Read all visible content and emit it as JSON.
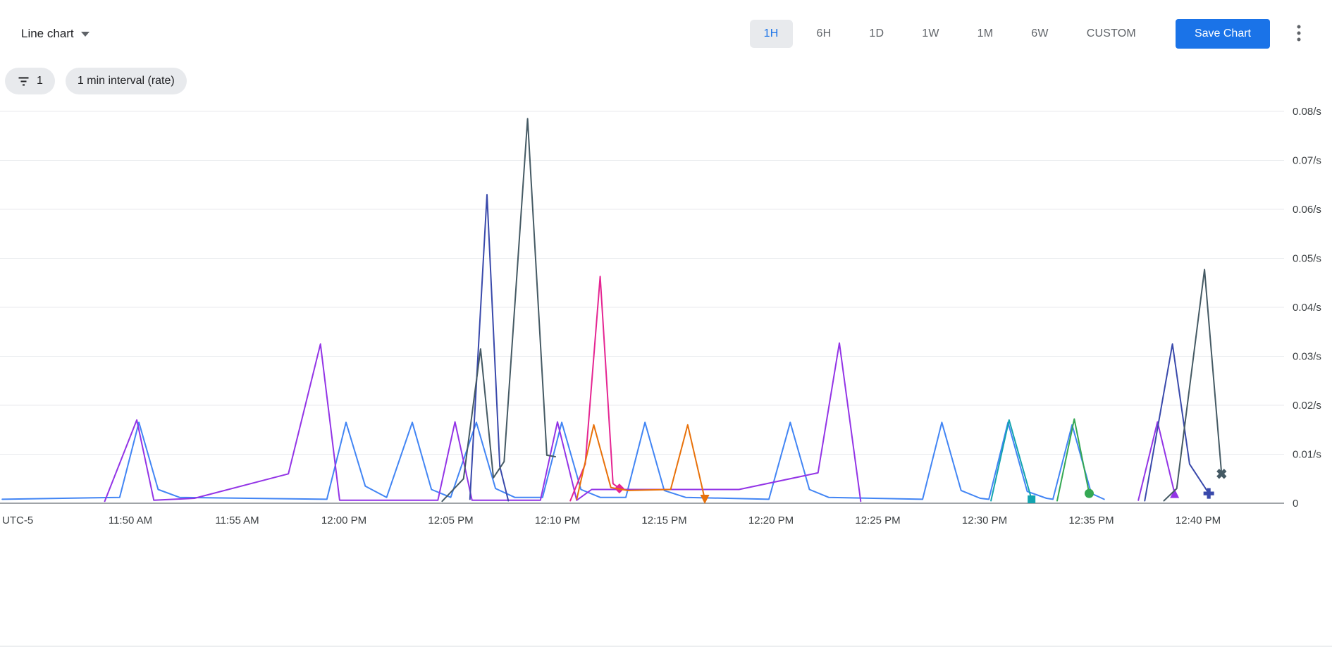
{
  "toolbar": {
    "chart_type_label": "Line chart",
    "time_ranges": [
      "1H",
      "6H",
      "1D",
      "1W",
      "1M",
      "6W",
      "CUSTOM"
    ],
    "selected_time_range": "1H",
    "save_button_label": "Save Chart"
  },
  "filters": {
    "filter_count_chip": "1",
    "interval_chip": "1 min interval (rate)"
  },
  "colors": {
    "accent_blue": "#1a73e8",
    "selected_range_bg": "#e8eaed",
    "chip_bg": "#e8eaed",
    "gridline": "#e8eaed",
    "axis_line": "#80868b",
    "tick_text": "#3c4043"
  },
  "icons": {
    "chart_type": "caret-down-icon",
    "filter_chip": "filter-list-icon",
    "overflow": "kebab-menu-icon"
  },
  "chart_data": {
    "type": "line",
    "title": "",
    "legend": "none",
    "grid": true,
    "x_axis": {
      "timezone_label": "UTC-5",
      "unit": "minutes after 11:44 AM",
      "range": [
        0,
        60
      ],
      "ticks": [
        {
          "t": 6,
          "label": "11:50 AM"
        },
        {
          "t": 11,
          "label": "11:55 AM"
        },
        {
          "t": 16,
          "label": "12:00 PM"
        },
        {
          "t": 21,
          "label": "12:05 PM"
        },
        {
          "t": 26,
          "label": "12:10 PM"
        },
        {
          "t": 31,
          "label": "12:15 PM"
        },
        {
          "t": 36,
          "label": "12:20 PM"
        },
        {
          "t": 41,
          "label": "12:25 PM"
        },
        {
          "t": 46,
          "label": "12:30 PM"
        },
        {
          "t": 51,
          "label": "12:35 PM"
        },
        {
          "t": 56,
          "label": "12:40 PM"
        }
      ]
    },
    "y_axis": {
      "unit": "/s",
      "range": [
        0,
        0.08
      ],
      "ticks": [
        {
          "v": 0.08,
          "label": "0.08/s"
        },
        {
          "v": 0.07,
          "label": "0.07/s"
        },
        {
          "v": 0.06,
          "label": "0.06/s"
        },
        {
          "v": 0.05,
          "label": "0.05/s"
        },
        {
          "v": 0.04,
          "label": "0.04/s"
        },
        {
          "v": 0.03,
          "label": "0.03/s"
        },
        {
          "v": 0.02,
          "label": "0.02/s"
        },
        {
          "v": 0.01,
          "label": "0.01/s"
        },
        {
          "v": 0,
          "label": "0"
        }
      ]
    },
    "series": [
      {
        "name": "blue",
        "color": "#4285F4",
        "marker": null,
        "points": [
          [
            0,
            0.0008
          ],
          [
            5.5,
            0.0012
          ],
          [
            6.4,
            0.0165
          ],
          [
            7.3,
            0.0028
          ],
          [
            8.3,
            0.0012
          ],
          [
            15.2,
            0.0008
          ],
          [
            16.1,
            0.0165
          ],
          [
            17,
            0.0035
          ],
          [
            18,
            0.0012
          ],
          [
            19.2,
            0.0165
          ],
          [
            20.1,
            0.0028
          ],
          [
            21,
            0.0012
          ],
          [
            22.2,
            0.0165
          ],
          [
            23.1,
            0.003
          ],
          [
            24,
            0.0012
          ],
          [
            25.3,
            0.0012
          ],
          [
            26.2,
            0.0165
          ],
          [
            27.1,
            0.0028
          ],
          [
            28,
            0.0012
          ],
          [
            29.2,
            0.0012
          ],
          [
            30.1,
            0.0165
          ],
          [
            31,
            0.0026
          ],
          [
            32,
            0.0012
          ],
          [
            35.9,
            0.0008
          ],
          [
            36.9,
            0.0165
          ],
          [
            37.8,
            0.0028
          ],
          [
            38.7,
            0.0012
          ],
          [
            43.1,
            0.0008
          ],
          [
            44,
            0.0165
          ],
          [
            44.9,
            0.0026
          ],
          [
            45.8,
            0.001
          ],
          [
            46.2,
            0.0008
          ],
          [
            47.1,
            0.0165
          ],
          [
            48,
            0.0024
          ],
          [
            48.9,
            0.001
          ],
          [
            49.2,
            0.0008
          ],
          [
            50.1,
            0.016
          ],
          [
            51,
            0.002
          ],
          [
            51.6,
            0.0008
          ]
        ]
      },
      {
        "name": "purple-a",
        "color": "#9334E6",
        "marker": null,
        "points": [
          [
            4.8,
            0.0004
          ],
          [
            6.3,
            0.017
          ],
          [
            7.1,
            0.0006
          ],
          [
            9,
            0.001
          ],
          [
            13.4,
            0.006
          ],
          [
            14.9,
            0.0325
          ],
          [
            15.8,
            0.0006
          ],
          [
            20.4,
            0.0006
          ],
          [
            21.2,
            0.0166
          ],
          [
            22,
            0.0006
          ],
          [
            25.2,
            0.0006
          ],
          [
            26,
            0.0166
          ],
          [
            26.9,
            0.0006
          ],
          [
            27.6,
            0.0028
          ],
          [
            34.5,
            0.0028
          ],
          [
            38.2,
            0.0062
          ],
          [
            39.2,
            0.0327
          ],
          [
            40.2,
            0.0004
          ]
        ]
      },
      {
        "name": "navy-a",
        "color": "#3949AB",
        "marker": null,
        "points": [
          [
            21.9,
            0.0008
          ],
          [
            22.7,
            0.063
          ],
          [
            23.3,
            0.0075
          ],
          [
            23.7,
            0.0005
          ]
        ]
      },
      {
        "name": "slate-a",
        "color": "#455A64",
        "marker": null,
        "points": [
          [
            20.6,
            0.0004
          ],
          [
            21.6,
            0.005
          ],
          [
            22.4,
            0.0315
          ],
          [
            23,
            0.0052
          ],
          [
            23.5,
            0.0085
          ],
          [
            24.6,
            0.0785
          ],
          [
            25.5,
            0.0098
          ],
          [
            25.9,
            0.0095
          ]
        ]
      },
      {
        "name": "pink",
        "color": "#E52592",
        "marker": "diamond",
        "points": [
          [
            26.6,
            0.0005
          ],
          [
            27.3,
            0.008
          ],
          [
            28,
            0.0463
          ],
          [
            28.6,
            0.004
          ],
          [
            28.9,
            0.003
          ]
        ]
      },
      {
        "name": "orange",
        "color": "#E8710A",
        "marker": "triangle-down",
        "points": [
          [
            26.9,
            0.0008
          ],
          [
            27.7,
            0.016
          ],
          [
            28.5,
            0.0032
          ],
          [
            29.3,
            0.0026
          ],
          [
            31.3,
            0.0028
          ],
          [
            32.1,
            0.016
          ],
          [
            32.9,
            0.0008
          ]
        ]
      },
      {
        "name": "teal",
        "color": "#12A4AF",
        "marker": "square",
        "points": [
          [
            46.3,
            0.0005
          ],
          [
            47.15,
            0.017
          ],
          [
            48.2,
            0.0008
          ]
        ]
      },
      {
        "name": "green",
        "color": "#34A853",
        "marker": "circle",
        "points": [
          [
            49.4,
            0.0005
          ],
          [
            50.2,
            0.0172
          ],
          [
            50.9,
            0.002
          ]
        ]
      },
      {
        "name": "purple-b",
        "color": "#9334E6",
        "marker": "triangle-up",
        "points": [
          [
            53.2,
            0.0006
          ],
          [
            54.1,
            0.0166
          ],
          [
            54.9,
            0.002
          ]
        ]
      },
      {
        "name": "navy-b",
        "color": "#3949AB",
        "marker": "plus",
        "points": [
          [
            53.5,
            0.0005
          ],
          [
            54.8,
            0.0325
          ],
          [
            55.6,
            0.008
          ],
          [
            56.5,
            0.002
          ]
        ]
      },
      {
        "name": "slate-b",
        "color": "#455A64",
        "marker": "x",
        "points": [
          [
            54.4,
            0.0005
          ],
          [
            55,
            0.003
          ],
          [
            56.3,
            0.0477
          ],
          [
            57.1,
            0.006
          ]
        ]
      }
    ]
  }
}
